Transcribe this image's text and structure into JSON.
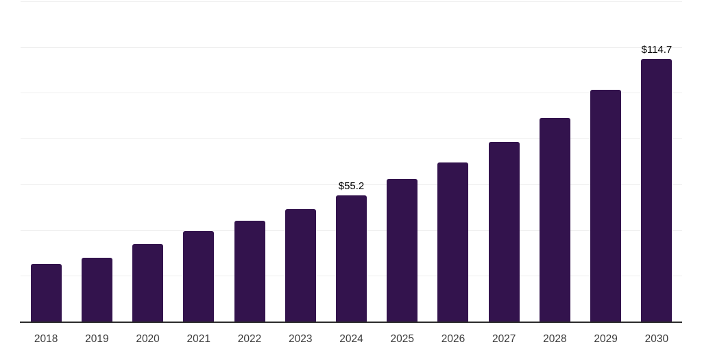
{
  "chart_data": {
    "type": "bar",
    "categories": [
      "2018",
      "2019",
      "2020",
      "2021",
      "2022",
      "2023",
      "2024",
      "2025",
      "2026",
      "2027",
      "2028",
      "2029",
      "2030"
    ],
    "values": [
      25.1,
      27.9,
      33.9,
      39.7,
      44.2,
      49.3,
      55.2,
      62.3,
      69.6,
      78.5,
      89.0,
      101.3,
      114.7
    ],
    "annotations": [
      {
        "index": 6,
        "category": "2024",
        "text": "$55.2"
      },
      {
        "index": 12,
        "category": "2030",
        "text": "$114.7"
      }
    ],
    "ylim": [
      0,
      140
    ],
    "gridline_step": 20,
    "grid": true,
    "legend": false,
    "y_tick_labels_visible": false,
    "colors": {
      "bar": "#33134D",
      "grid": "#ededed",
      "axis": "#2b2b2b",
      "data_label": "#000000",
      "tick_label": "#3c3c3c",
      "background": "#ffffff"
    }
  }
}
